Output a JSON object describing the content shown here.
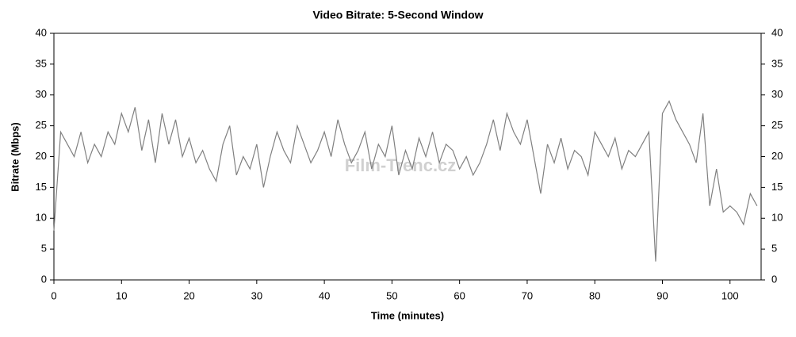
{
  "chart_data": {
    "type": "line",
    "title": "Video Bitrate: 5-Second Window",
    "xlabel": "Time (minutes)",
    "ylabel": "Bitrate (Mbps)",
    "watermark": "Film-Trenc.cz",
    "xlim": [
      0,
      104.6
    ],
    "xticks": [
      0,
      10,
      20,
      30,
      40,
      50,
      60,
      70,
      80,
      90,
      100
    ],
    "ylim": [
      0,
      40
    ],
    "yticks": [
      0,
      5,
      10,
      15,
      20,
      25,
      30,
      35,
      40
    ],
    "y2lim": [
      0,
      40
    ],
    "y2ticks": [
      0,
      5,
      10,
      15,
      20,
      25,
      30,
      35,
      40
    ],
    "x": [
      0,
      1,
      2,
      3,
      4,
      5,
      6,
      7,
      8,
      9,
      10,
      11,
      12,
      13,
      14,
      15,
      16,
      17,
      18,
      19,
      20,
      21,
      22,
      23,
      24,
      25,
      26,
      27,
      28,
      29,
      30,
      31,
      32,
      33,
      34,
      35,
      36,
      37,
      38,
      39,
      40,
      41,
      42,
      43,
      44,
      45,
      46,
      47,
      48,
      49,
      50,
      51,
      52,
      53,
      54,
      55,
      56,
      57,
      58,
      59,
      60,
      61,
      62,
      63,
      64,
      65,
      66,
      67,
      68,
      69,
      70,
      71,
      72,
      73,
      74,
      75,
      76,
      77,
      78,
      79,
      80,
      81,
      82,
      83,
      84,
      85,
      86,
      87,
      88,
      89,
      90,
      91,
      92,
      93,
      94,
      95,
      96,
      97,
      98,
      99,
      100,
      101,
      102,
      103,
      104
    ],
    "series": [
      {
        "name": "Bitrate",
        "color": "#808080",
        "values": [
          8,
          24,
          22,
          20,
          24,
          19,
          22,
          20,
          24,
          22,
          27,
          24,
          28,
          21,
          26,
          19,
          27,
          22,
          26,
          20,
          23,
          19,
          21,
          18,
          16,
          22,
          25,
          17,
          20,
          18,
          22,
          15,
          20,
          24,
          21,
          19,
          25,
          22,
          19,
          21,
          24,
          20,
          26,
          22,
          19,
          21,
          24,
          18,
          22,
          20,
          25,
          17,
          21,
          18,
          23,
          20,
          24,
          19,
          22,
          21,
          18,
          20,
          17,
          19,
          22,
          26,
          21,
          27,
          24,
          22,
          26,
          20,
          14,
          22,
          19,
          23,
          18,
          21,
          20,
          17,
          24,
          22,
          20,
          23,
          18,
          21,
          20,
          22,
          24,
          3,
          27,
          29,
          26,
          24,
          22,
          19,
          27,
          12,
          18,
          11,
          12,
          11,
          9,
          14,
          12
        ]
      }
    ]
  }
}
